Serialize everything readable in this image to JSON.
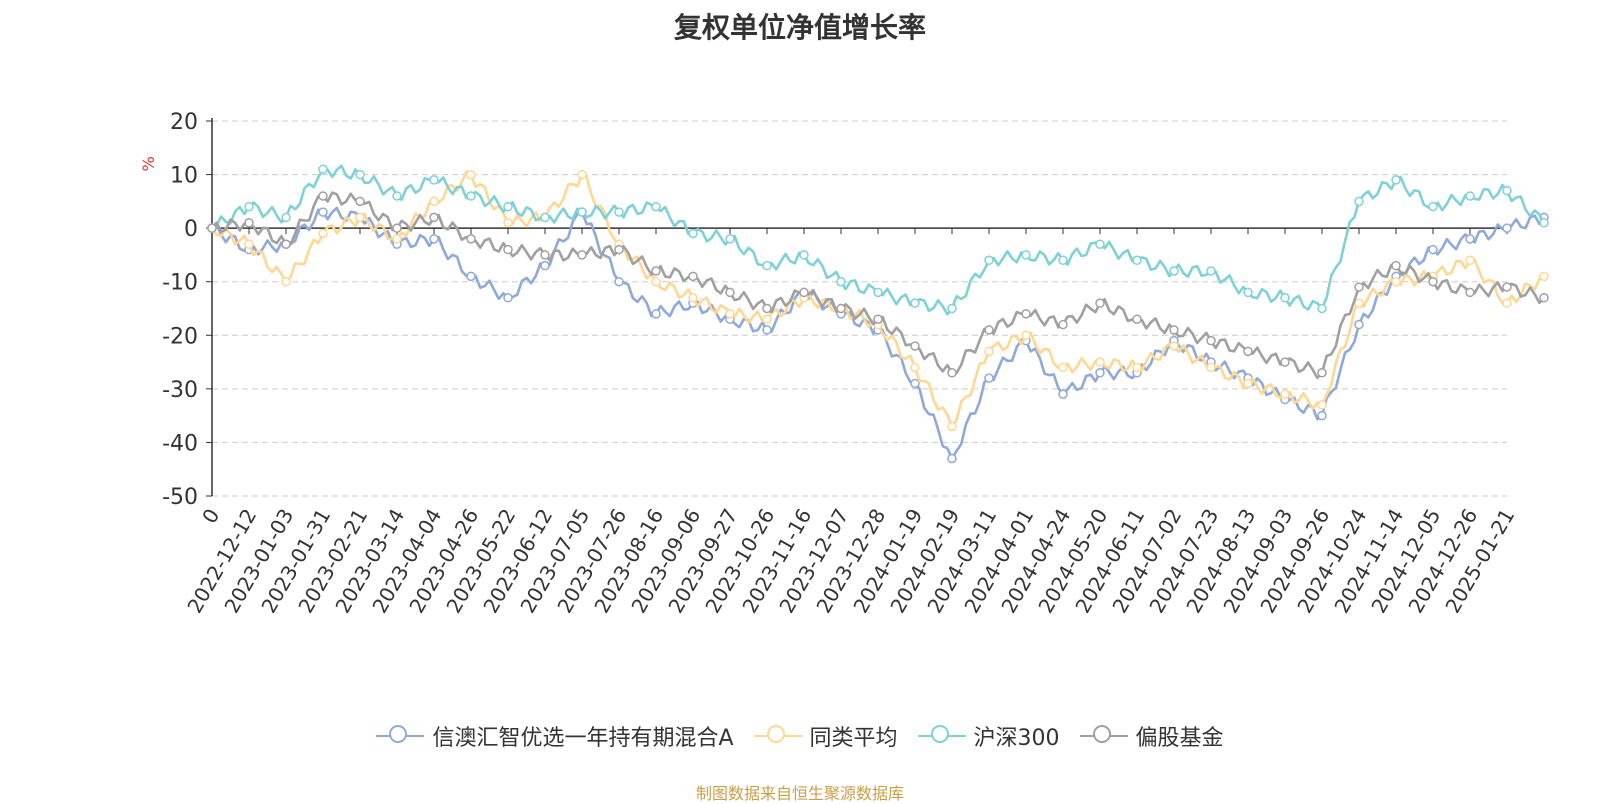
{
  "chart_data": {
    "type": "line",
    "title": "复权单位净值增长率",
    "ylabel": "%",
    "ylim": [
      -50,
      20
    ],
    "yticks": [
      20,
      10,
      0,
      -10,
      -20,
      -30,
      -40,
      -50
    ],
    "grid": true,
    "legend_position": "bottom",
    "xtick_labels": [
      "0",
      "2022-12-12",
      "2023-01-03",
      "2023-01-31",
      "2023-02-21",
      "2023-03-14",
      "2023-04-04",
      "2023-04-26",
      "2023-05-22",
      "2023-06-12",
      "2023-07-05",
      "2023-07-26",
      "2023-08-16",
      "2023-09-06",
      "2023-09-27",
      "2023-10-26",
      "2023-11-16",
      "2023-12-07",
      "2023-12-28",
      "2024-01-19",
      "2024-02-19",
      "2024-03-11",
      "2024-04-01",
      "2024-04-24",
      "2024-05-20",
      "2024-06-11",
      "2024-07-02",
      "2024-07-23",
      "2024-08-13",
      "2024-09-03",
      "2024-09-26",
      "2024-10-24",
      "2024-11-14",
      "2024-12-05",
      "2024-12-26",
      "2025-01-21"
    ],
    "series": [
      {
        "name": "信澳汇智优选一年持有期混合A",
        "color": "#8fa9d8",
        "values": [
          0,
          -4,
          -3,
          3,
          2,
          -3,
          -2,
          -9,
          -13,
          -7,
          3,
          -10,
          -16,
          -14,
          -17,
          -19,
          -12,
          -16,
          -19,
          -29,
          -43,
          -28,
          -21,
          -31,
          -27,
          -27,
          -21,
          -25,
          -28,
          -32,
          -35,
          -18,
          -9,
          -4,
          -2,
          0,
          2
        ]
      },
      {
        "name": "同类平均",
        "color": "#ffd794",
        "values": [
          0,
          -3,
          -10,
          -1,
          2,
          -2,
          5,
          10,
          1,
          2,
          10,
          -3,
          -10,
          -13,
          -16,
          -17,
          -13,
          -15,
          -18,
          -26,
          -37,
          -23,
          -20,
          -26,
          -25,
          -26,
          -22,
          -26,
          -29,
          -31,
          -33,
          -14,
          -10,
          -9,
          -6,
          -14,
          -9
        ]
      },
      {
        "name": "沪深300",
        "color": "#7fd1d6",
        "values": [
          0,
          4,
          2,
          11,
          10,
          6,
          9,
          6,
          4,
          2,
          3,
          3,
          4,
          -1,
          -2,
          -7,
          -5,
          -10,
          -12,
          -14,
          -15,
          -6,
          -5,
          -6,
          -3,
          -6,
          -8,
          -8,
          -12,
          -13,
          -15,
          5,
          9,
          4,
          6,
          7,
          1
        ]
      },
      {
        "name": "偏股基金",
        "color": "#a0a0a0",
        "values": [
          0,
          1,
          -3,
          6,
          5,
          0,
          2,
          -2,
          -4,
          -5,
          -5,
          -4,
          -8,
          -9,
          -12,
          -15,
          -12,
          -15,
          -17,
          -22,
          -27,
          -19,
          -16,
          -18,
          -14,
          -17,
          -19,
          -21,
          -23,
          -25,
          -27,
          -11,
          -7,
          -10,
          -12,
          -11,
          -13
        ]
      }
    ]
  },
  "source_text": "制图数据来自恒生聚源数据库"
}
